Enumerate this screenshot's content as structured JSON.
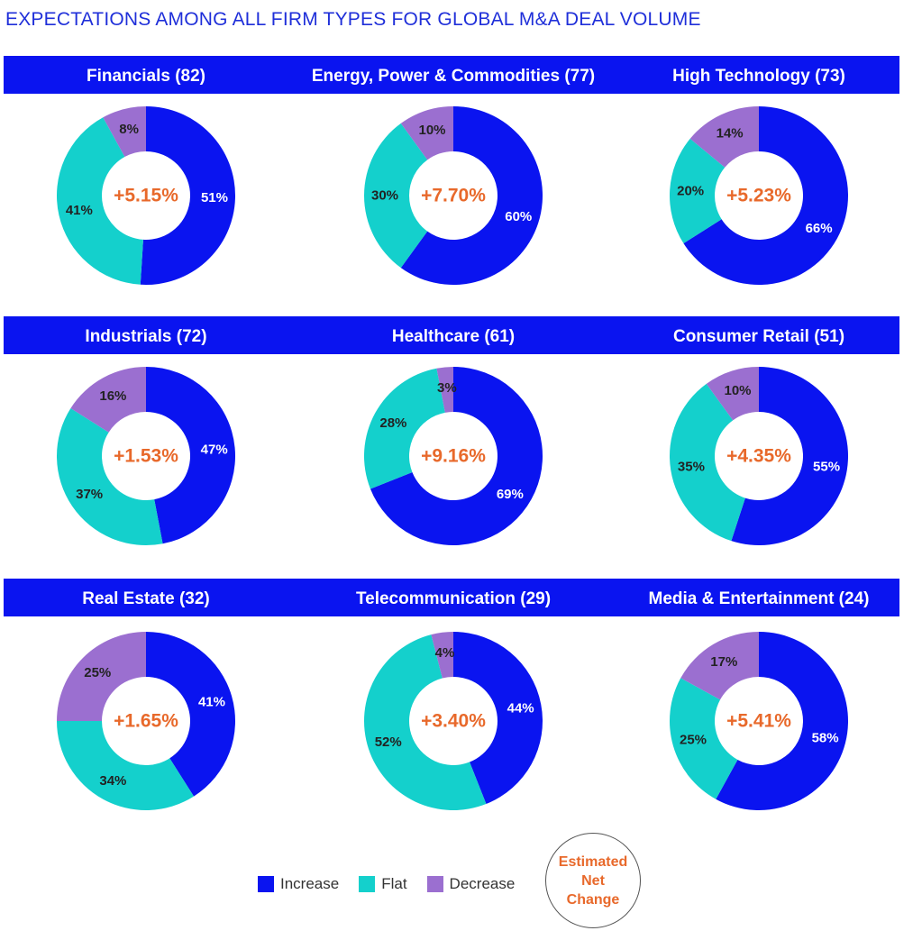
{
  "title": "EXPECTATIONS AMONG ALL FIRM TYPES FOR GLOBAL M&A DEAL VOLUME",
  "colors": {
    "increase": "#0a14f0",
    "flat": "#14d0cc",
    "decrease": "#9b6fd0",
    "net": "#e8692b",
    "band": "#0a14f0",
    "title": "#1f2fd9"
  },
  "legend": {
    "items": [
      {
        "label": "Increase",
        "color": "#0a14f0"
      },
      {
        "label": "Flat",
        "color": "#14d0cc"
      },
      {
        "label": "Decrease",
        "color": "#9b6fd0"
      }
    ],
    "net_badge": [
      "Estimated",
      "Net",
      "Change"
    ]
  },
  "chart_data": {
    "type": "donut",
    "series_order": [
      "Increase",
      "Flat",
      "Decrease"
    ],
    "charts": [
      {
        "label": "Financials (82)",
        "increase": 51,
        "flat": 41,
        "decrease": 8,
        "net": "+5.15%"
      },
      {
        "label": "Energy, Power & Commodities (77)",
        "increase": 60,
        "flat": 30,
        "decrease": 10,
        "net": "+7.70%"
      },
      {
        "label": "High Technology (73)",
        "increase": 66,
        "flat": 20,
        "decrease": 14,
        "net": "+5.23%"
      },
      {
        "label": "Industrials (72)",
        "increase": 47,
        "flat": 37,
        "decrease": 16,
        "net": "+1.53%"
      },
      {
        "label": "Healthcare (61)",
        "increase": 69,
        "flat": 28,
        "decrease": 3,
        "net": "+9.16%"
      },
      {
        "label": "Consumer Retail (51)",
        "increase": 55,
        "flat": 35,
        "decrease": 10,
        "net": "+4.35%"
      },
      {
        "label": "Real Estate (32)",
        "increase": 41,
        "flat": 34,
        "decrease": 25,
        "net": "+1.65%"
      },
      {
        "label": "Telecommunication (29)",
        "increase": 44,
        "flat": 52,
        "decrease": 4,
        "net": "+3.40%"
      },
      {
        "label": "Media & Entertainment (24)",
        "increase": 58,
        "flat": 25,
        "decrease": 17,
        "net": "+5.41%"
      }
    ]
  }
}
